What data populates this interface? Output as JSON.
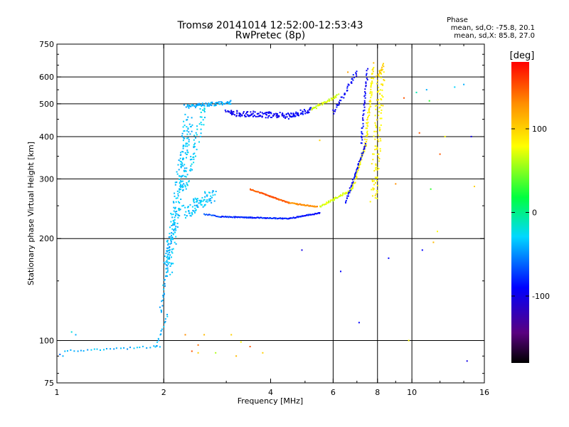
{
  "chart_data": {
    "type": "scatter",
    "title": "Tromsø 20141014 12:52:00-12:53:43",
    "subtitle": "RwPretec (8p)",
    "xlabel": "Frequency [MHz]",
    "ylabel": "Stationary phase Virtual Height [km]",
    "x_scale": "log",
    "y_scale": "log",
    "xlim": [
      1,
      16
    ],
    "ylim": [
      75,
      750
    ],
    "x_ticks": [
      1,
      2,
      4,
      6,
      8,
      10,
      16
    ],
    "x_tick_labels": [
      "1",
      "2",
      "4",
      "6",
      "8",
      "10",
      "16"
    ],
    "x_grid": [
      2,
      6,
      8,
      10
    ],
    "y_ticks": [
      75,
      100,
      200,
      300,
      400,
      500,
      600,
      750
    ],
    "y_tick_labels": [
      "75",
      "100",
      "200",
      "300",
      "400",
      "500",
      "600",
      "750"
    ],
    "y_grid": [
      100,
      200,
      300,
      400,
      500,
      600
    ],
    "grid": true,
    "stats": {
      "heading": "Phase",
      "line_o": "mean, sd,O: -75.8, 20.1",
      "line_x": "mean, sd,X:  85.8, 27.0"
    },
    "colorbar": {
      "label": "[deg]",
      "range": [
        -180,
        180
      ],
      "ticks": [
        100,
        0,
        -100
      ],
      "tick_labels": [
        "100",
        "0",
        "-100"
      ]
    },
    "traces": [
      {
        "x0": 1.05,
        "x1": 1.95,
        "y0": 93,
        "y1": 96,
        "phase": -40,
        "n": 30,
        "spread": 2
      },
      {
        "x0": 1.9,
        "x1": 2.05,
        "y0": 95,
        "y1": 120,
        "phase": -40,
        "n": 15,
        "spread": 3
      },
      {
        "x0": 1.95,
        "x1": 2.15,
        "y0": 120,
        "y1": 230,
        "phase": -40,
        "n": 45,
        "spread": 5
      },
      {
        "x0": 2.05,
        "x1": 2.35,
        "y0": 160,
        "y1": 450,
        "phase": -35,
        "n": 220,
        "spread": 14
      },
      {
        "x0": 2.3,
        "x1": 2.75,
        "y0": 240,
        "y1": 270,
        "phase": -35,
        "n": 90,
        "spread": 14
      },
      {
        "x0": 2.3,
        "x1": 2.6,
        "y0": 280,
        "y1": 490,
        "phase": -30,
        "n": 60,
        "spread": 10
      },
      {
        "x0": 2.3,
        "x1": 3.1,
        "y0": 490,
        "y1": 505,
        "phase": -40,
        "n": 80,
        "spread": 4
      },
      {
        "x0": 2.6,
        "x1": 2.9,
        "y0": 236,
        "y1": 232,
        "phase": -70,
        "n": 15,
        "spread": 1
      },
      {
        "x0": 2.9,
        "x1": 4.5,
        "y0": 232,
        "y1": 229,
        "phase": -80,
        "n": 80,
        "spread": 1
      },
      {
        "x0": 4.5,
        "x1": 5.5,
        "y0": 229,
        "y1": 238,
        "phase": -85,
        "n": 40,
        "spread": 1
      },
      {
        "x0": 3.5,
        "x1": 4.5,
        "y0": 280,
        "y1": 255,
        "phase": 150,
        "n": 60,
        "spread": 1
      },
      {
        "x0": 4.5,
        "x1": 5.4,
        "y0": 255,
        "y1": 248,
        "phase": 130,
        "n": 40,
        "spread": 1
      },
      {
        "x0": 5.5,
        "x1": 6.8,
        "y0": 248,
        "y1": 280,
        "phase": 70,
        "n": 50,
        "spread": 2
      },
      {
        "x0": 6.8,
        "x1": 7.4,
        "y0": 280,
        "y1": 380,
        "phase": 80,
        "n": 50,
        "spread": 3
      },
      {
        "x0": 7.4,
        "x1": 7.8,
        "y0": 380,
        "y1": 640,
        "phase": 85,
        "n": 60,
        "spread": 4
      },
      {
        "x0": 6.5,
        "x1": 7.4,
        "y0": 255,
        "y1": 380,
        "phase": -90,
        "n": 50,
        "spread": 2
      },
      {
        "x0": 7.2,
        "x1": 7.5,
        "y0": 380,
        "y1": 630,
        "phase": -90,
        "n": 40,
        "spread": 3
      },
      {
        "x0": 6.0,
        "x1": 7.0,
        "y0": 470,
        "y1": 620,
        "phase": -90,
        "n": 40,
        "spread": 4
      },
      {
        "x0": 3.0,
        "x1": 4.5,
        "y0": 470,
        "y1": 460,
        "phase": -95,
        "n": 120,
        "spread": 7
      },
      {
        "x0": 4.5,
        "x1": 5.2,
        "y0": 460,
        "y1": 480,
        "phase": -90,
        "n": 50,
        "spread": 6
      },
      {
        "x0": 5.2,
        "x1": 6.2,
        "y0": 480,
        "y1": 530,
        "phase": 70,
        "n": 40,
        "spread": 3
      },
      {
        "x0": 7.8,
        "x1": 8.2,
        "y0": 260,
        "y1": 620,
        "phase": 85,
        "n": 110,
        "spread": 12
      },
      {
        "x0": 8.0,
        "x1": 8.3,
        "y0": 600,
        "y1": 650,
        "phase": 100,
        "n": 15,
        "spread": 4
      }
    ],
    "scatter_points": [
      {
        "x": 1.1,
        "y": 106,
        "phase": -20
      },
      {
        "x": 1.13,
        "y": 104,
        "phase": -40
      },
      {
        "x": 1.02,
        "y": 91,
        "phase": -60
      },
      {
        "x": 1.04,
        "y": 90,
        "phase": -40
      },
      {
        "x": 2.3,
        "y": 104,
        "phase": 130
      },
      {
        "x": 2.4,
        "y": 93,
        "phase": 150
      },
      {
        "x": 2.5,
        "y": 92,
        "phase": 100
      },
      {
        "x": 2.5,
        "y": 97,
        "phase": 140
      },
      {
        "x": 2.6,
        "y": 104,
        "phase": 110
      },
      {
        "x": 2.8,
        "y": 92,
        "phase": 60
      },
      {
        "x": 3.1,
        "y": 104,
        "phase": 100
      },
      {
        "x": 3.2,
        "y": 90,
        "phase": 110
      },
      {
        "x": 3.5,
        "y": 96,
        "phase": 150
      },
      {
        "x": 3.8,
        "y": 92,
        "phase": 100
      },
      {
        "x": 3.3,
        "y": 99,
        "phase": 80
      },
      {
        "x": 4.9,
        "y": 185,
        "phase": -100
      },
      {
        "x": 5.5,
        "y": 390,
        "phase": 100
      },
      {
        "x": 6.3,
        "y": 160,
        "phase": -90
      },
      {
        "x": 7.1,
        "y": 113,
        "phase": -90
      },
      {
        "x": 8.6,
        "y": 175,
        "phase": -90
      },
      {
        "x": 9.0,
        "y": 290,
        "phase": 130
      },
      {
        "x": 9.5,
        "y": 520,
        "phase": 150
      },
      {
        "x": 9.8,
        "y": 100,
        "phase": 80
      },
      {
        "x": 10.3,
        "y": 540,
        "phase": -10
      },
      {
        "x": 10.5,
        "y": 410,
        "phase": 150
      },
      {
        "x": 10.7,
        "y": 185,
        "phase": -90
      },
      {
        "x": 11.0,
        "y": 550,
        "phase": -40
      },
      {
        "x": 11.2,
        "y": 510,
        "phase": 30
      },
      {
        "x": 11.3,
        "y": 280,
        "phase": 30
      },
      {
        "x": 11.5,
        "y": 195,
        "phase": 110
      },
      {
        "x": 11.8,
        "y": 210,
        "phase": 80
      },
      {
        "x": 12.0,
        "y": 355,
        "phase": 150
      },
      {
        "x": 12.4,
        "y": 400,
        "phase": 80
      },
      {
        "x": 13.2,
        "y": 560,
        "phase": -30
      },
      {
        "x": 14.0,
        "y": 570,
        "phase": -40
      },
      {
        "x": 14.7,
        "y": 400,
        "phase": -100
      },
      {
        "x": 15.0,
        "y": 285,
        "phase": 100
      },
      {
        "x": 14.3,
        "y": 87,
        "phase": -100
      },
      {
        "x": 6.6,
        "y": 620,
        "phase": 120
      },
      {
        "x": 7.8,
        "y": 660,
        "phase": 110
      }
    ]
  }
}
